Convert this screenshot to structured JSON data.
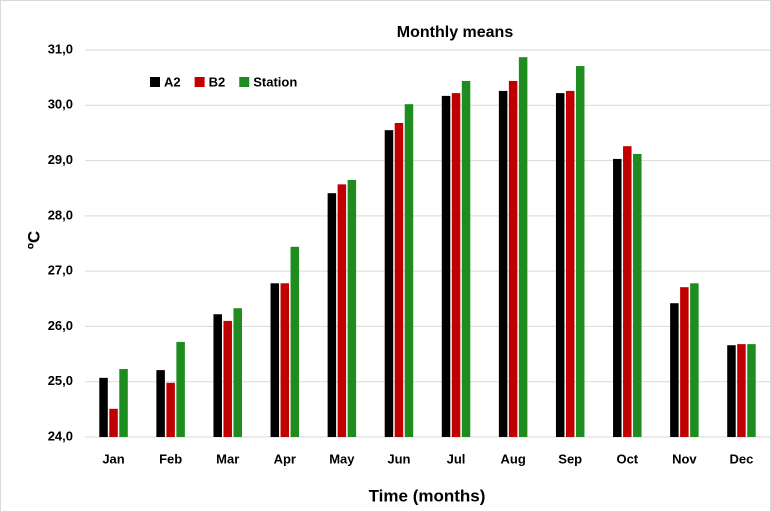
{
  "chart_data": {
    "type": "bar",
    "title": "Monthly means",
    "x_label": "Time (months)",
    "y_label": "ºC",
    "categories": [
      "Jan",
      "Feb",
      "Mar",
      "Apr",
      "May",
      "Jun",
      "Jul",
      "Aug",
      "Sep",
      "Oct",
      "Nov",
      "Dec"
    ],
    "series": [
      {
        "name": "A2",
        "color": "#000000",
        "values": [
          25.07,
          25.21,
          26.22,
          26.78,
          28.41,
          29.55,
          30.17,
          30.26,
          30.22,
          29.03,
          26.42,
          25.66
        ]
      },
      {
        "name": "B2",
        "color": "#c00000",
        "values": [
          24.51,
          24.98,
          26.1,
          26.78,
          28.57,
          29.68,
          30.22,
          30.44,
          30.26,
          29.26,
          26.71,
          25.68
        ]
      },
      {
        "name": "Station",
        "color": "#1e8c1e",
        "values": [
          25.23,
          25.72,
          26.33,
          27.44,
          28.65,
          30.02,
          30.44,
          30.87,
          30.71,
          29.12,
          26.78,
          25.68
        ]
      }
    ],
    "ylim": [
      24,
      31
    ],
    "yticks": [
      {
        "value": 24,
        "label": "24,0"
      },
      {
        "value": 25,
        "label": "25,0"
      },
      {
        "value": 26,
        "label": "26,0"
      },
      {
        "value": 27,
        "label": "27,0"
      },
      {
        "value": 28,
        "label": "28,0"
      },
      {
        "value": 29,
        "label": "29,0"
      },
      {
        "value": 30,
        "label": "30,0"
      },
      {
        "value": 31,
        "label": "31,0"
      }
    ],
    "grid": true,
    "legend": "top-left"
  }
}
